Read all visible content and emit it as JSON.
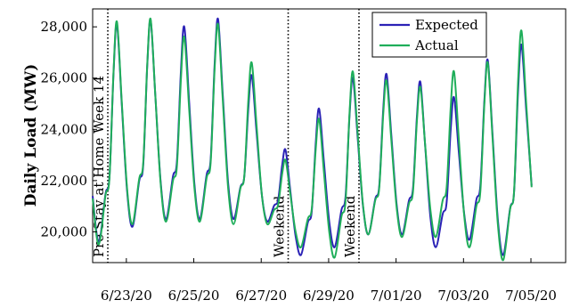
{
  "chart_data": {
    "type": "line",
    "title": "",
    "xlabel": "",
    "ylabel": "Daily Load (MW)",
    "x_range_days": [
      "6/22/20",
      "7/06/20"
    ],
    "ylim": [
      18800,
      28700
    ],
    "y_ticks": [
      20000,
      22000,
      24000,
      26000,
      28000
    ],
    "y_tick_labels": [
      "20,000",
      "22,000",
      "24,000",
      "26,000",
      "28,000"
    ],
    "x_ticks": [
      1,
      3,
      5,
      7,
      9,
      11,
      13
    ],
    "x_tick_labels": [
      "6/23/20",
      "6/25/20",
      "6/27/20",
      "6/29/20",
      "7/01/20",
      "7/03/20",
      "7/05/20"
    ],
    "grid": false,
    "legend_position": "top-right",
    "series": [
      {
        "name": "Expected",
        "color": "#2b22b6",
        "peaks": [
          28100,
          28250,
          28000,
          28300,
          26100,
          23200,
          24800,
          26000,
          26150,
          25850,
          25250,
          26700,
          27300
        ],
        "troughs": [
          19600,
          20200,
          20500,
          20500,
          20500,
          20400,
          19100,
          19400,
          19900,
          19900,
          19400,
          19700,
          19100
        ]
      },
      {
        "name": "Actual",
        "color": "#1fae5a",
        "peaks": [
          28200,
          28300,
          27600,
          28100,
          26600,
          22800,
          24400,
          26250,
          25900,
          25650,
          26250,
          26600,
          27850
        ],
        "troughs": [
          19500,
          20300,
          20400,
          20400,
          20300,
          20300,
          19400,
          19000,
          19900,
          19800,
          19800,
          19400,
          18900
        ]
      }
    ],
    "vlines": [
      {
        "x": 0.45,
        "label": "Pre Stay at Home Week 14"
      },
      {
        "x": 5.8,
        "label": "Weekend"
      },
      {
        "x": 7.9,
        "label": "Weekend"
      }
    ]
  }
}
